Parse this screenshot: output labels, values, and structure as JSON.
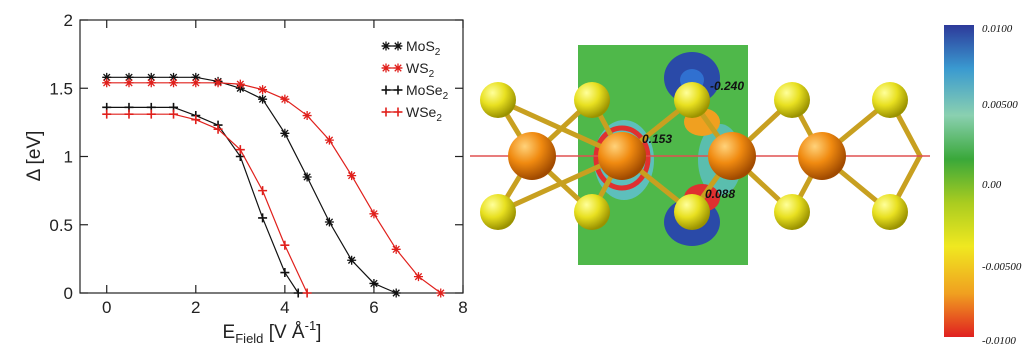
{
  "chart_data": {
    "type": "line",
    "xlabel": {
      "main": "E",
      "sub": "Field",
      "unit": " [V Å",
      "sup": "-1",
      "close": "]"
    },
    "ylabel": "Δ [eV]",
    "xlim": [
      -0.6,
      8
    ],
    "ylim": [
      0,
      2
    ],
    "x_ticks": [
      0,
      2,
      4,
      6,
      8
    ],
    "x_tick_labels": [
      "0",
      "2",
      "4",
      "6",
      "8"
    ],
    "y_ticks": [
      0,
      0.5,
      1,
      1.5,
      2
    ],
    "y_tick_labels": [
      "0",
      "0.5",
      "1",
      "1.5",
      "2"
    ],
    "legend_position": "top-right",
    "series": [
      {
        "name_main": "MoS",
        "name_sub": "2",
        "color": "#111111",
        "marker": "asterisk",
        "x": [
          0,
          0.5,
          1,
          1.5,
          2,
          2.5,
          3,
          3.5,
          4,
          4.5,
          5,
          5.5,
          6,
          6.5
        ],
        "y": [
          1.58,
          1.58,
          1.58,
          1.58,
          1.58,
          1.55,
          1.5,
          1.42,
          1.17,
          0.85,
          0.52,
          0.24,
          0.07,
          0.0
        ]
      },
      {
        "name_main": "WS",
        "name_sub": "2",
        "color": "#e0201c",
        "marker": "asterisk",
        "x": [
          0,
          0.5,
          1,
          1.5,
          2,
          2.5,
          3,
          3.5,
          4,
          4.5,
          5,
          5.5,
          6,
          6.5,
          7,
          7.5
        ],
        "y": [
          1.54,
          1.54,
          1.54,
          1.54,
          1.54,
          1.54,
          1.53,
          1.49,
          1.42,
          1.3,
          1.12,
          0.86,
          0.58,
          0.32,
          0.12,
          0.0
        ]
      },
      {
        "name_main": "MoSe",
        "name_sub": "2",
        "color": "#111111",
        "marker": "plus",
        "x": [
          0,
          0.5,
          1,
          1.5,
          2,
          2.5,
          3,
          3.5,
          4,
          4.3
        ],
        "y": [
          1.36,
          1.36,
          1.36,
          1.36,
          1.3,
          1.23,
          1.0,
          0.55,
          0.15,
          0.0
        ]
      },
      {
        "name_main": "WSe",
        "name_sub": "2",
        "color": "#e0201c",
        "marker": "plus",
        "x": [
          0,
          0.5,
          1,
          1.5,
          2,
          2.5,
          3,
          3.5,
          4,
          4.5
        ],
        "y": [
          1.31,
          1.31,
          1.31,
          1.31,
          1.27,
          1.2,
          1.05,
          0.75,
          0.35,
          0.0
        ]
      }
    ]
  },
  "density_map": {
    "labels": [
      "-0.240",
      "0.153",
      "0.088"
    ]
  },
  "colorbar": {
    "labels": [
      "0.0100",
      "0.00500",
      "0.00",
      "-0.00500",
      "-0.0100"
    ],
    "colors": [
      "#2d3a9a",
      "#3a9ad0",
      "#8ad0b0",
      "#3aa83a",
      "#aacc20",
      "#f0e820",
      "#f0a020",
      "#e02020"
    ]
  }
}
